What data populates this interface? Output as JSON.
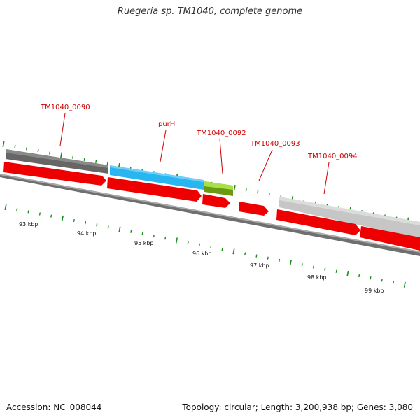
{
  "title": "Ruegeria sp. TM1040, complete genome",
  "footer": {
    "accession": "Accession: NC_008044",
    "summary": "Topology: circular; Length: 3,200,938 bp; Genes: 3,080"
  },
  "colors": {
    "cds": "#ff0000",
    "label": "#cc0000",
    "tick": "#1a8a1a",
    "backbone": "#7a7a7a",
    "feature_dark_gray": "#666666",
    "feature_cyan": "#29b6f0",
    "feature_lime": "#8fcf20",
    "feature_light_gray": "#c0c0c0"
  },
  "scale_labels": [
    "93 kbp",
    "94 kbp",
    "95 kbp",
    "96 kbp",
    "97 kbp",
    "98 kbp",
    "99 kbp"
  ],
  "gene_labels": [
    "TM1040_0090",
    "purH",
    "TM1040_0092",
    "TM1040_0093",
    "TM1040_0094"
  ]
}
